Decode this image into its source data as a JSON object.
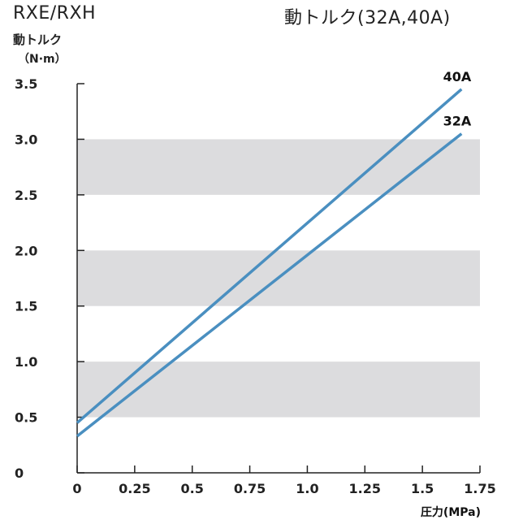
{
  "header": {
    "left_title": "RXE/RXH",
    "right_title": "動トルク(32A,40A)"
  },
  "chart_data": {
    "type": "line",
    "title": "動トルク(32A,40A)",
    "ylabel_line1": "動トルク",
    "ylabel_line2": "（N·m）",
    "xlabel": "圧力(MPa)",
    "xlim": [
      0,
      1.75
    ],
    "ylim": [
      0,
      3.5
    ],
    "x_ticks": [
      "0",
      "0.25",
      "0.5",
      "0.75",
      "1.0",
      "1.25",
      "1.5",
      "1.75"
    ],
    "x_tick_values": [
      0,
      0.25,
      0.5,
      0.75,
      1.0,
      1.25,
      1.5,
      1.75
    ],
    "y_ticks": [
      "0",
      "0.5",
      "1.0",
      "1.5",
      "2.0",
      "2.5",
      "3.0",
      "3.5"
    ],
    "y_tick_values": [
      0,
      0.5,
      1.0,
      1.5,
      2.0,
      2.5,
      3.0,
      3.5
    ],
    "bands": [
      [
        0.5,
        1.0
      ],
      [
        1.5,
        2.0
      ],
      [
        2.5,
        3.0
      ]
    ],
    "band_color": "#dcdcde",
    "line_color": "#4a8fc0",
    "series": [
      {
        "name": "40A",
        "x": [
          0,
          1.67
        ],
        "values": [
          0.45,
          3.45
        ]
      },
      {
        "name": "32A",
        "x": [
          0,
          1.67
        ],
        "values": [
          0.33,
          3.05
        ]
      }
    ]
  }
}
